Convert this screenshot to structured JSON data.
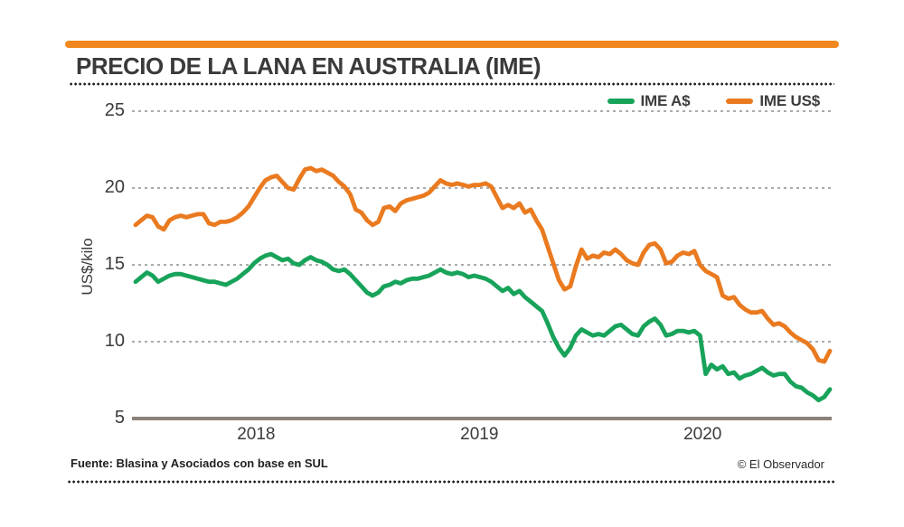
{
  "header": {
    "title": "PRECIO DE LA LANA EN AUSTRALIA (IME)"
  },
  "colors": {
    "accent_bar": "#F0871F",
    "ime_a_green": "#18A35A",
    "ime_us_orange": "#EA7A1F",
    "text_dark": "#3A3A3A",
    "axis_line": "#8A827B",
    "gridline": "#8F8F8F"
  },
  "footer": {
    "source": "Fuente: Blasina y Asociados con base en SUL",
    "credit": "© El Observador"
  },
  "chart_data": {
    "type": "line",
    "title": "PRECIO DE LA LANA EN AUSTRALIA (IME)",
    "xlabel": "",
    "ylabel": "US$/kilo",
    "ylim": [
      5,
      26
    ],
    "yticks": [
      25,
      20,
      15,
      10,
      5
    ],
    "xticks": [
      2018,
      2019,
      2020
    ],
    "x_range_years": [
      2017.46,
      2020.57
    ],
    "sampling": "uniform (weekly series, 124 points)",
    "grid": "horizontal dashed at 10/15/20/25",
    "legend_position": "top-right",
    "series": [
      {
        "name": "IME A$",
        "color": "#18A35A",
        "values": [
          13.9,
          14.2,
          14.5,
          14.3,
          13.9,
          14.1,
          14.3,
          14.4,
          14.4,
          14.3,
          14.2,
          14.1,
          14.0,
          13.9,
          13.9,
          13.8,
          13.7,
          13.9,
          14.1,
          14.4,
          14.7,
          15.1,
          15.4,
          15.6,
          15.7,
          15.5,
          15.3,
          15.4,
          15.1,
          15.0,
          15.3,
          15.5,
          15.3,
          15.2,
          15.0,
          14.7,
          14.6,
          14.7,
          14.4,
          14.0,
          13.6,
          13.2,
          13.0,
          13.2,
          13.6,
          13.7,
          13.9,
          13.8,
          14.0,
          14.1,
          14.1,
          14.2,
          14.3,
          14.5,
          14.7,
          14.5,
          14.4,
          14.5,
          14.4,
          14.2,
          14.3,
          14.2,
          14.1,
          13.9,
          13.6,
          13.3,
          13.5,
          13.1,
          13.3,
          12.9,
          12.6,
          12.3,
          12.0,
          11.2,
          10.3,
          9.6,
          9.1,
          9.6,
          10.4,
          10.8,
          10.6,
          10.4,
          10.5,
          10.4,
          10.7,
          11.0,
          11.1,
          10.8,
          10.5,
          10.4,
          11.0,
          11.3,
          11.5,
          11.1,
          10.4,
          10.5,
          10.7,
          10.7,
          10.6,
          10.7,
          10.4,
          7.9,
          8.5,
          8.2,
          8.4,
          7.9,
          8.0,
          7.6,
          7.8,
          7.9,
          8.1,
          8.3,
          8.0,
          7.8,
          7.9,
          7.9,
          7.4,
          7.1,
          7.0,
          6.7,
          6.5,
          6.2,
          6.4,
          6.9
        ]
      },
      {
        "name": "IME US$",
        "color": "#EA7A1F",
        "values": [
          17.6,
          17.9,
          18.2,
          18.1,
          17.5,
          17.3,
          17.9,
          18.1,
          18.2,
          18.1,
          18.2,
          18.3,
          18.3,
          17.7,
          17.6,
          17.8,
          17.8,
          17.9,
          18.1,
          18.4,
          18.8,
          19.4,
          20.0,
          20.5,
          20.7,
          20.8,
          20.4,
          20.0,
          19.9,
          20.6,
          21.2,
          21.3,
          21.1,
          21.2,
          21.0,
          20.8,
          20.4,
          20.1,
          19.6,
          18.6,
          18.4,
          17.9,
          17.6,
          17.8,
          18.7,
          18.8,
          18.5,
          19.0,
          19.2,
          19.3,
          19.4,
          19.5,
          19.7,
          20.1,
          20.5,
          20.3,
          20.2,
          20.3,
          20.2,
          20.1,
          20.2,
          20.2,
          20.3,
          20.1,
          19.4,
          18.7,
          18.9,
          18.7,
          19.0,
          18.4,
          18.6,
          17.9,
          17.3,
          16.2,
          15.1,
          14.0,
          13.4,
          13.6,
          14.9,
          16.0,
          15.4,
          15.6,
          15.5,
          15.8,
          15.7,
          16.0,
          15.7,
          15.3,
          15.1,
          15.0,
          15.8,
          16.3,
          16.4,
          16.0,
          15.1,
          15.2,
          15.6,
          15.8,
          15.7,
          15.9,
          15.0,
          14.6,
          14.4,
          14.2,
          13.0,
          12.8,
          12.9,
          12.4,
          12.1,
          11.9,
          11.9,
          12.0,
          11.5,
          11.1,
          11.2,
          11.0,
          10.6,
          10.3,
          10.1,
          9.9,
          9.5,
          8.8,
          8.7,
          9.4
        ]
      }
    ]
  }
}
